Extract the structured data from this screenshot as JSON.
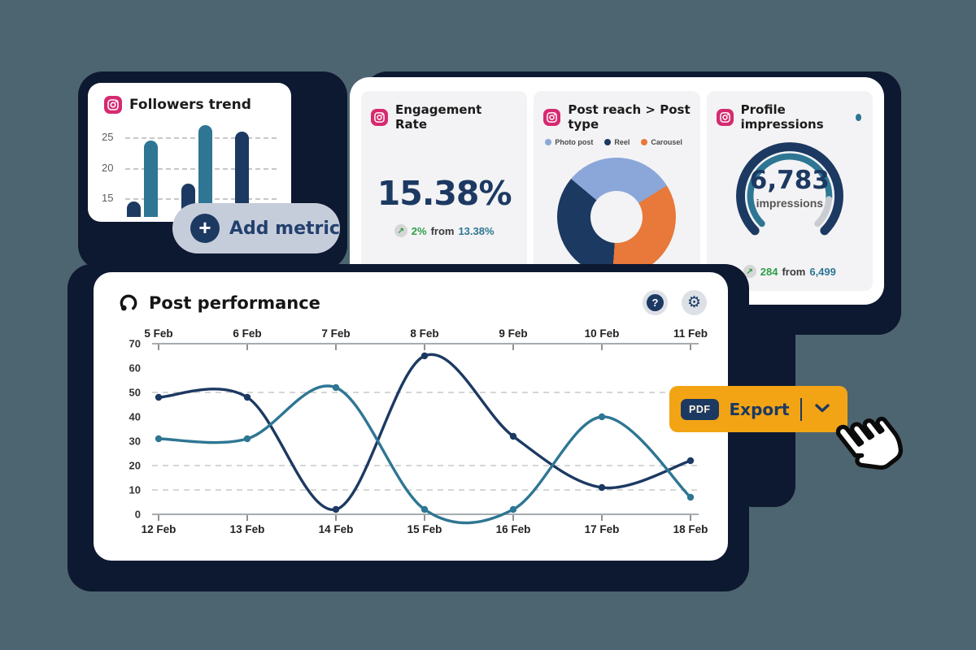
{
  "colors": {
    "page_bg": "#4d6570",
    "backdrop_navy": "#0d1930",
    "navy": "#1c3962",
    "teal": "#2e7693",
    "orange": "#f3a415",
    "pink_instagram": "#d62a70",
    "green_positive": "#2f9e47",
    "panel_gray": "#f3f3f5",
    "pill_gray": "#c6cdda",
    "legend_photo": "#8ba7d9",
    "legend_reel": "#1c3962",
    "legend_carousel": "#e8793a",
    "gauge_remainder": "#c9ccd1"
  },
  "followers_card": {
    "title": "Followers trend"
  },
  "add_metric_button": {
    "label": "Add metric",
    "icon": "plus-icon"
  },
  "engagement_card": {
    "title": "Engagement Rate",
    "value": "15.38%",
    "delta": "2%",
    "from_word": "from",
    "previous": "13.38%"
  },
  "post_reach_card": {
    "title": "Post reach > Post type",
    "legend": [
      {
        "label": "Photo post",
        "color": "#8ba7d9"
      },
      {
        "label": "Reel",
        "color": "#1c3962"
      },
      {
        "label": "Carousel",
        "color": "#e8793a"
      }
    ]
  },
  "impressions_card": {
    "title": "Profile impressions",
    "value": "6,783",
    "unit": "impressions",
    "delta": "284",
    "from_word": "from",
    "previous": "6,499"
  },
  "post_performance_card": {
    "title": "Post performance",
    "help_glyph": "?",
    "gear_glyph": "⚙"
  },
  "export_button": {
    "badge": "PDF",
    "label": "Export"
  },
  "delta_icon_glyph": "↗",
  "chart_data": [
    {
      "type": "bar",
      "panel": "followers-trend",
      "title": "Followers trend",
      "yticks": [
        25,
        20,
        15
      ],
      "values": [
        14.5,
        24.5,
        17.5,
        27,
        26
      ],
      "bar_colors": [
        "#1c3962",
        "#2e7693",
        "#1c3962",
        "#2e7693",
        "#1c3962"
      ],
      "grid": "dashed"
    },
    {
      "type": "pie",
      "panel": "post-reach-post-type",
      "title": "Post reach > Post type",
      "slices": [
        {
          "label": "Photo post",
          "value": 30,
          "color": "#8ba7d9"
        },
        {
          "label": "Carousel",
          "value": 35,
          "color": "#e8793a"
        },
        {
          "label": "Reel",
          "value": 35,
          "color": "#1c3962"
        }
      ],
      "donut": true,
      "start_angle_deg": -50
    },
    {
      "type": "gauge",
      "panel": "profile-impressions",
      "title": "Profile impressions",
      "value": 6783,
      "unit": "impressions",
      "delta": 284,
      "previous": 6499
    },
    {
      "type": "line",
      "panel": "post-performance",
      "title": "Post performance",
      "x_top": [
        "5 Feb",
        "6 Feb",
        "7 Feb",
        "8 Feb",
        "9 Feb",
        "10 Feb",
        "11 Feb"
      ],
      "x_bottom": [
        "12 Feb",
        "13 Feb",
        "14 Feb",
        "15 Feb",
        "16 Feb",
        "17 Feb",
        "18 Feb"
      ],
      "yticks": [
        70,
        60,
        50,
        40,
        30,
        20,
        10,
        0
      ],
      "ylim": [
        0,
        70
      ],
      "gridlines": [
        50,
        20,
        10
      ],
      "legend_position": "none",
      "series": [
        {
          "name": "dark-navy-series",
          "color": "#1c3962",
          "values": [
            48,
            48,
            2,
            65,
            32,
            11,
            22
          ]
        },
        {
          "name": "teal-series",
          "color": "#2e7693",
          "values": [
            31,
            31,
            52,
            2,
            2,
            40,
            7
          ]
        }
      ]
    }
  ]
}
